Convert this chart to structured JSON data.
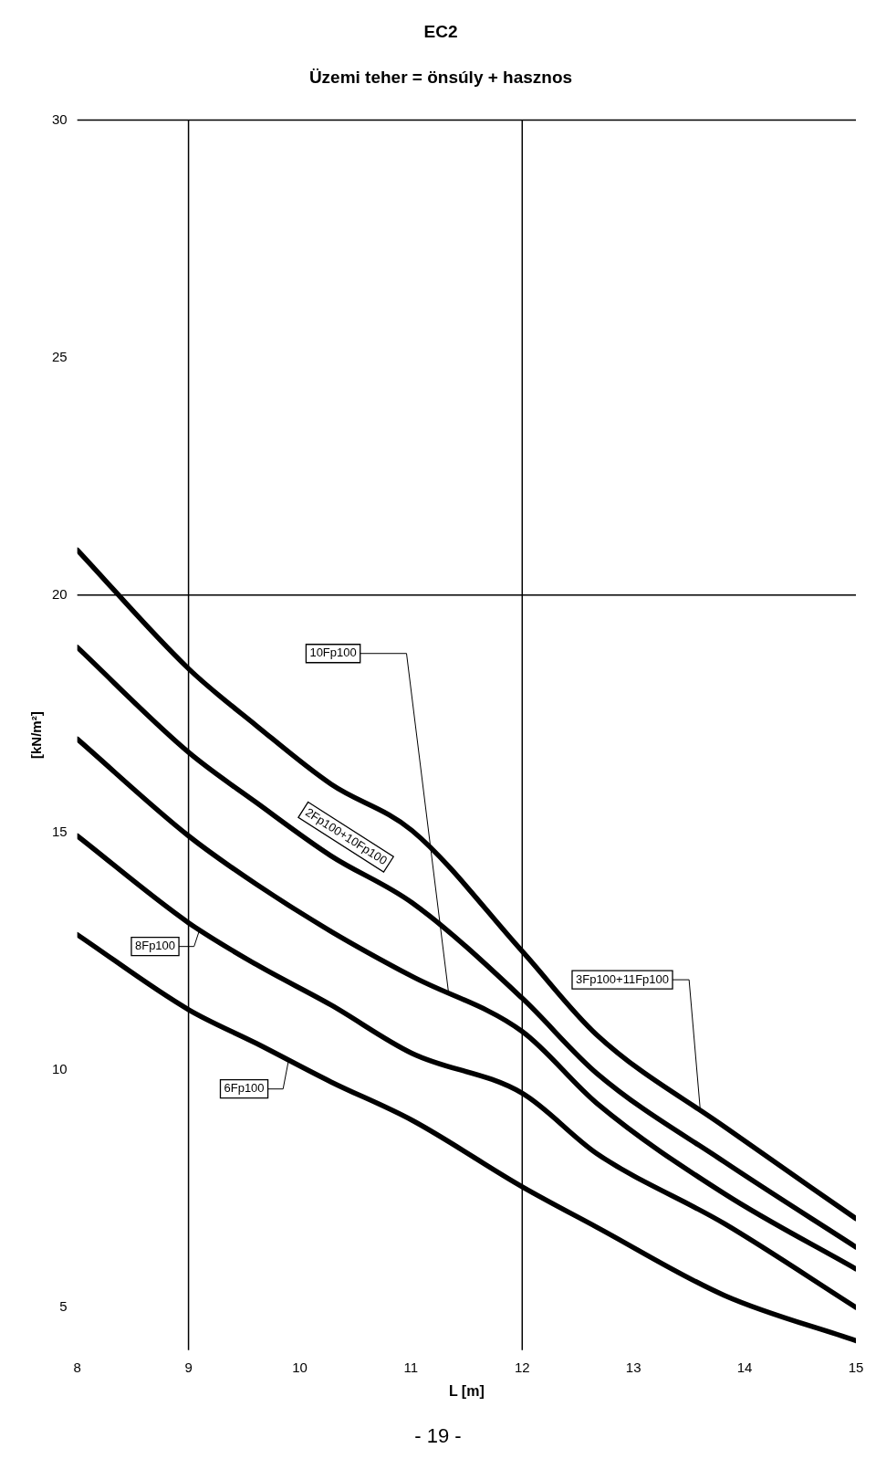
{
  "chart_data": {
    "type": "line",
    "title": "EC2",
    "subtitle": "Üzemi teher = önsúly + hasznos",
    "xlabel": "L [m]",
    "ylabel": "[kN/m²]",
    "x": [
      8,
      9,
      9.61,
      10.28,
      11.01,
      12,
      12.67,
      13.82,
      15
    ],
    "series": [
      {
        "name": "3Fp100+11Fp100",
        "color": "#000000",
        "values": [
          20.95,
          18.45,
          17.25,
          16.02,
          15.04,
          12.5,
          10.74,
          8.8,
          6.87
        ]
      },
      {
        "name": "2Fp100+10Fp100",
        "color": "#000000",
        "values": [
          18.9,
          16.69,
          15.63,
          14.51,
          13.52,
          11.51,
          9.93,
          8.06,
          6.27
        ]
      },
      {
        "name": "10Fp100",
        "color": "#000000",
        "values": [
          16.97,
          14.93,
          13.91,
          12.92,
          11.97,
          10.81,
          9.3,
          7.39,
          5.81
        ]
      },
      {
        "name": "8Fp100",
        "color": "#000000",
        "values": [
          14.93,
          13.1,
          12.22,
          11.37,
          10.35,
          9.51,
          8.24,
          6.76,
          5.0
        ]
      },
      {
        "name": "6Fp100",
        "color": "#000000",
        "values": [
          12.85,
          11.27,
          10.56,
          9.75,
          8.94,
          7.54,
          6.69,
          5.25,
          4.3
        ]
      }
    ],
    "xlim": [
      8,
      15
    ],
    "ylim": [
      4.1,
      30
    ],
    "xticks": [
      8,
      9,
      10,
      11,
      12,
      13,
      14,
      15
    ],
    "yticks": [
      5,
      10,
      15,
      20,
      25,
      30
    ],
    "ref_lines": [
      {
        "axis": "x",
        "value": 9
      },
      {
        "axis": "x",
        "value": 12
      },
      {
        "axis": "y",
        "value": 20
      }
    ],
    "annotations": [
      "- 19 -"
    ]
  }
}
